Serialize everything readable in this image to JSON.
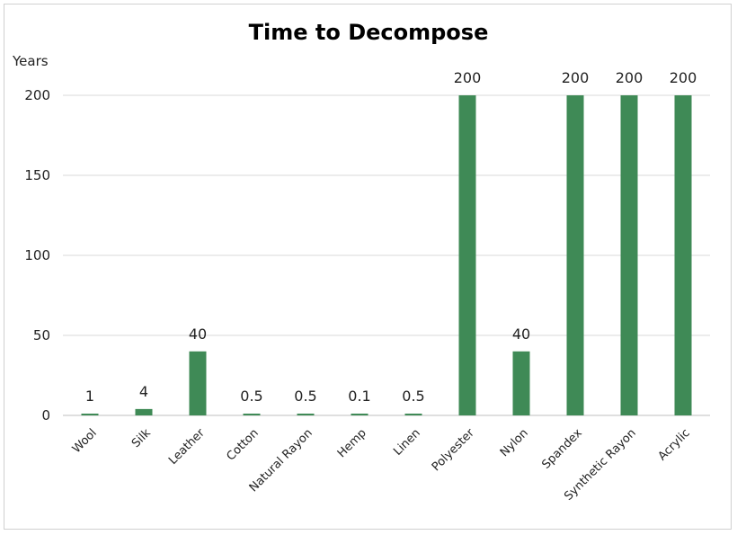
{
  "chart_data": {
    "type": "bar",
    "title": "Time to Decompose",
    "ylabel": "Years",
    "xlabel": "",
    "ylim": [
      0,
      200
    ],
    "yticks": [
      0,
      50,
      100,
      150,
      200
    ],
    "grid": true,
    "bar_color": "#3f8a56",
    "categories": [
      "Wool",
      "Silk",
      "Leather",
      "Cotton",
      "Natural Rayon",
      "Hemp",
      "Linen",
      "Polyester",
      "Nylon",
      "Spandex",
      "Synthetic Rayon",
      "Acrylic"
    ],
    "values": [
      1,
      4,
      40,
      0.5,
      0.5,
      0.1,
      0.5,
      200,
      40,
      200,
      200,
      200
    ],
    "data_labels": [
      "1",
      "4",
      "40",
      "0.5",
      "0.5",
      "0.1",
      "0.5",
      "200",
      "40",
      "200",
      "200",
      "200"
    ]
  }
}
